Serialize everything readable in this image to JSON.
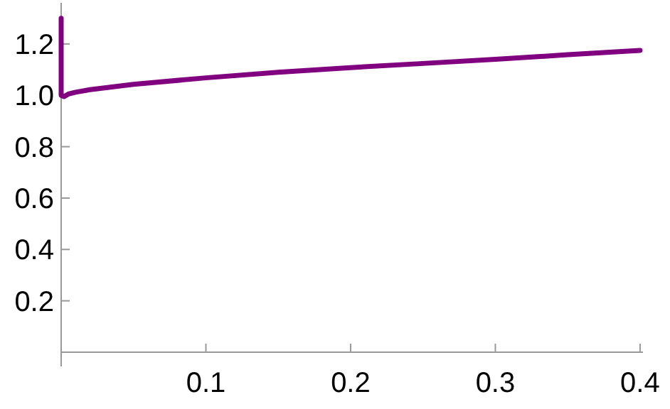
{
  "chart_data": {
    "type": "line",
    "x": [
      0,
      0,
      0.002,
      0.005,
      0.01,
      0.02,
      0.05,
      0.1,
      0.15,
      0.2,
      0.25,
      0.3,
      0.35,
      0.4
    ],
    "series": [
      {
        "color": "#800080",
        "values": [
          1.3,
          1.0,
          0.995,
          1.005,
          1.012,
          1.022,
          1.043,
          1.068,
          1.09,
          1.108,
          1.124,
          1.14,
          1.158,
          1.175
        ]
      }
    ],
    "xlim": [
      0,
      0.402
    ],
    "ylim": [
      0,
      1.36
    ],
    "xticks": [
      0.1,
      0.2,
      0.3,
      0.4
    ],
    "yticks": [
      0.2,
      0.4,
      0.6,
      0.8,
      {
        "value": 1,
        "label": "1.0"
      },
      1.2
    ],
    "grid": false,
    "marker": "none",
    "line_style": "solid"
  }
}
